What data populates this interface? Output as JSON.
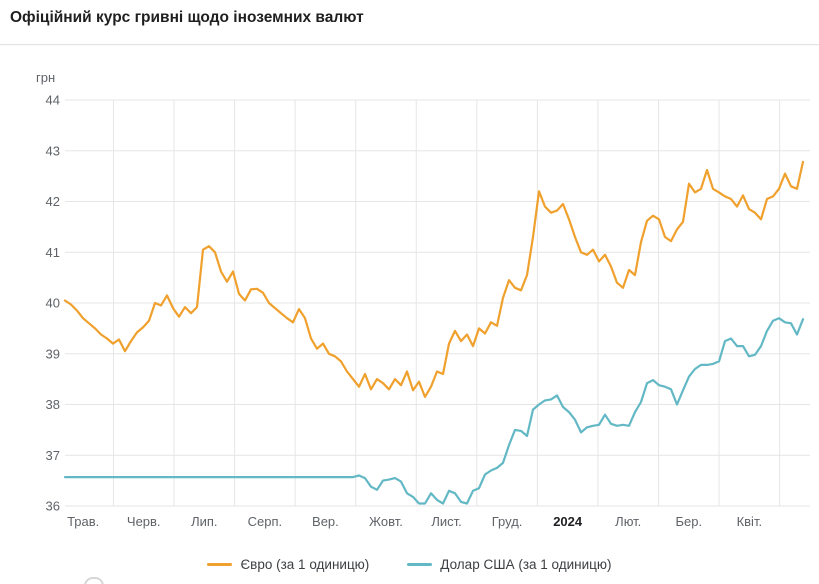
{
  "title": "Офіційний курс гривні щодо іноземних валют",
  "axis": {
    "unit_label": "грн",
    "y_ticks": [
      44,
      43,
      42,
      41,
      40,
      39,
      38,
      37,
      36
    ],
    "x_labels": [
      "Трав.",
      "Черв.",
      "Лип.",
      "Серп.",
      "Вер.",
      "Жовт.",
      "Лист.",
      "Груд.",
      "2024",
      "Лют.",
      "Бер.",
      "Квіт."
    ],
    "bold_x_label": "2024"
  },
  "legend": {
    "euro": "Євро (за 1 одиницю)",
    "dollar": "Долар США (за 1 одиницю)"
  },
  "colors": {
    "euro": "#F0A02C",
    "dollar": "#62B8C4",
    "grid": "#e6e6e6",
    "axis_text": "#5f6368",
    "bold_axis_text": "#202124"
  },
  "chart_data": {
    "type": "line",
    "title": "Офіційний курс гривні щодо іноземних валют",
    "ylabel": "грн",
    "ylim": [
      36,
      44
    ],
    "grid": true,
    "legend_position": "bottom",
    "x_labels": [
      "Трав.",
      "Черв.",
      "Лип.",
      "Серп.",
      "Вер.",
      "Жовт.",
      "Лист.",
      "Груд.",
      "2024",
      "Лют.",
      "Бер.",
      "Квіт."
    ],
    "series": [
      {
        "name": "Євро (за 1 одиницю)",
        "color_key": "euro",
        "values": [
          40.05,
          39.97,
          39.85,
          39.7,
          39.6,
          39.5,
          39.38,
          39.3,
          39.2,
          39.28,
          39.05,
          39.25,
          39.42,
          39.52,
          39.65,
          40.0,
          39.95,
          40.15,
          39.9,
          39.73,
          39.92,
          39.8,
          39.92,
          41.05,
          41.12,
          41.0,
          40.62,
          40.42,
          40.62,
          40.18,
          40.05,
          40.27,
          40.28,
          40.2,
          40.0,
          39.9,
          39.8,
          39.7,
          39.62,
          39.88,
          39.7,
          39.3,
          39.1,
          39.2,
          39.0,
          38.95,
          38.85,
          38.65,
          38.5,
          38.35,
          38.6,
          38.3,
          38.5,
          38.42,
          38.3,
          38.5,
          38.38,
          38.65,
          38.28,
          38.45,
          38.15,
          38.35,
          38.65,
          38.6,
          39.2,
          39.45,
          39.25,
          39.38,
          39.15,
          39.5,
          39.4,
          39.62,
          39.55,
          40.1,
          40.45,
          40.3,
          40.25,
          40.55,
          41.3,
          42.2,
          41.9,
          41.78,
          41.82,
          41.95,
          41.65,
          41.3,
          41.0,
          40.95,
          41.05,
          40.82,
          40.95,
          40.72,
          40.4,
          40.3,
          40.65,
          40.55,
          41.2,
          41.62,
          41.72,
          41.65,
          41.3,
          41.22,
          41.45,
          41.6,
          42.35,
          42.18,
          42.25,
          42.62,
          42.25,
          42.18,
          42.1,
          42.05,
          41.9,
          42.12,
          41.85,
          41.78,
          41.65,
          42.05,
          42.1,
          42.25,
          42.55,
          42.3,
          42.25,
          42.78
        ]
      },
      {
        "name": "Долар США (за 1 одиницю)",
        "color_key": "dollar",
        "values": [
          36.57,
          36.57,
          36.57,
          36.57,
          36.57,
          36.57,
          36.57,
          36.57,
          36.57,
          36.57,
          36.57,
          36.57,
          36.57,
          36.57,
          36.57,
          36.57,
          36.57,
          36.57,
          36.57,
          36.57,
          36.57,
          36.57,
          36.57,
          36.57,
          36.57,
          36.57,
          36.57,
          36.57,
          36.57,
          36.57,
          36.57,
          36.57,
          36.57,
          36.57,
          36.57,
          36.57,
          36.57,
          36.57,
          36.57,
          36.57,
          36.57,
          36.57,
          36.57,
          36.57,
          36.57,
          36.57,
          36.57,
          36.57,
          36.57,
          36.6,
          36.55,
          36.38,
          36.32,
          36.5,
          36.52,
          36.55,
          36.48,
          36.25,
          36.18,
          36.05,
          36.05,
          36.25,
          36.12,
          36.05,
          36.3,
          36.25,
          36.08,
          36.05,
          36.3,
          36.35,
          36.62,
          36.7,
          36.75,
          36.85,
          37.2,
          37.5,
          37.48,
          37.38,
          37.9,
          38.0,
          38.08,
          38.1,
          38.18,
          37.95,
          37.85,
          37.7,
          37.45,
          37.55,
          37.58,
          37.6,
          37.8,
          37.62,
          37.58,
          37.6,
          37.58,
          37.85,
          38.05,
          38.42,
          38.48,
          38.38,
          38.35,
          38.3,
          38.0,
          38.28,
          38.55,
          38.7,
          38.78,
          38.78,
          38.8,
          38.85,
          39.25,
          39.3,
          39.15,
          39.15,
          38.95,
          38.98,
          39.15,
          39.45,
          39.65,
          39.7,
          39.62,
          39.6,
          39.38,
          39.68
        ]
      }
    ]
  }
}
